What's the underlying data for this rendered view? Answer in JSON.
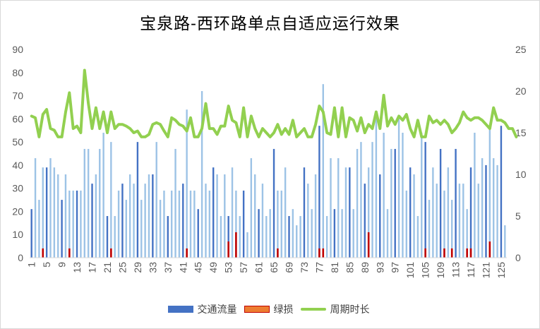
{
  "title": "宝泉路-西环路单点自适应运行效果",
  "legend": [
    {
      "label": "交通流量",
      "color": "#4472c4",
      "kind": "bar"
    },
    {
      "label": "绿损",
      "color": "#ed7d31",
      "kind": "bar"
    },
    {
      "label": "周期时长",
      "color": "#92d050",
      "kind": "line"
    }
  ],
  "colors": {
    "flow_light": "#9dc3e6",
    "flow_dark": "#4472c4",
    "loss": "#c00000",
    "cycle": "#92d050",
    "axis": "#d9d9d9",
    "tick_text": "#595959"
  },
  "chart_data": {
    "type": "bar",
    "title": "宝泉路-西环路单点自适应运行效果",
    "xlabel": "",
    "ylabel": "",
    "y2label": "",
    "ylim": [
      0,
      90
    ],
    "y2lim": [
      0,
      25
    ],
    "yticks": [
      0,
      10,
      20,
      30,
      40,
      50,
      60,
      70,
      80,
      90
    ],
    "y2ticks": [
      0,
      5,
      10,
      15,
      20,
      25
    ],
    "xtick_labels": [
      "1",
      "5",
      "9",
      "13",
      "17",
      "21",
      "25",
      "29",
      "33",
      "37",
      "41",
      "45",
      "49",
      "53",
      "57",
      "61",
      "65",
      "69",
      "73",
      "77",
      "81",
      "85",
      "89",
      "93",
      "97",
      "101",
      "105",
      "109",
      "113",
      "117",
      "121",
      "125"
    ],
    "grid": false,
    "legend_position": "bottom",
    "categories_count": 126,
    "series": [
      {
        "name": "交通流量",
        "type": "bar",
        "axis": "left",
        "values": [
          21,
          43,
          25,
          39,
          39,
          43,
          39,
          36,
          25,
          36,
          29,
          29,
          29,
          29,
          47,
          47,
          32,
          36,
          47,
          54,
          18,
          50,
          18,
          29,
          32,
          25,
          36,
          32,
          50,
          25,
          32,
          36,
          36,
          50,
          25,
          29,
          18,
          29,
          47,
          29,
          32,
          64,
          29,
          29,
          21,
          72,
          32,
          29,
          39,
          36,
          18,
          36,
          18,
          39,
          29,
          18,
          29,
          11,
          43,
          36,
          21,
          32,
          18,
          21,
          47,
          29,
          29,
          39,
          18,
          21,
          14,
          18,
          39,
          32,
          21,
          36,
          57,
          75,
          18,
          43,
          21,
          43,
          21,
          39,
          39,
          21,
          47,
          50,
          32,
          39,
          50,
          61,
          36,
          54,
          21,
          47,
          47,
          61,
          54,
          29,
          39,
          36,
          18,
          54,
          50,
          25,
          39,
          32,
          47,
          29,
          39,
          25,
          47,
          32,
          32,
          21,
          39,
          54,
          32,
          43,
          40,
          57,
          43,
          40,
          57,
          14
        ],
        "dark_indices": [
          0,
          4,
          8,
          12,
          16,
          20,
          24,
          28,
          32,
          36,
          40,
          44,
          48,
          52,
          56,
          60,
          64,
          68,
          72,
          76,
          80,
          84,
          88,
          92,
          96,
          100,
          104,
          108,
          112,
          116,
          120,
          124
        ]
      },
      {
        "name": "绿损",
        "type": "bar",
        "axis": "left",
        "values": [
          0,
          0,
          0,
          4,
          0,
          0,
          0,
          0,
          0,
          0,
          4,
          0,
          0,
          0,
          0,
          0,
          0,
          0,
          0,
          0,
          0,
          4,
          0,
          0,
          0,
          0,
          0,
          0,
          0,
          0,
          0,
          0,
          0,
          0,
          0,
          0,
          0,
          0,
          0,
          0,
          0,
          4,
          0,
          0,
          0,
          0,
          0,
          0,
          0,
          0,
          0,
          0,
          7,
          0,
          11,
          0,
          0,
          0,
          0,
          0,
          0,
          0,
          0,
          0,
          0,
          4,
          0,
          0,
          0,
          0,
          0,
          0,
          0,
          0,
          0,
          0,
          4,
          4,
          0,
          0,
          0,
          0,
          0,
          0,
          0,
          0,
          0,
          0,
          0,
          11,
          0,
          0,
          0,
          0,
          0,
          0,
          0,
          0,
          0,
          0,
          0,
          0,
          0,
          0,
          4,
          0,
          0,
          0,
          0,
          4,
          0,
          4,
          0,
          0,
          0,
          4,
          4,
          0,
          0,
          0,
          0,
          7,
          0,
          0,
          0,
          0
        ]
      },
      {
        "name": "周期时长",
        "type": "line",
        "axis": "right",
        "values": [
          17,
          16.8,
          14.5,
          17.2,
          17.8,
          15.5,
          15.3,
          14.5,
          14.5,
          17.5,
          19.8,
          15.5,
          15.8,
          15,
          22.5,
          18.5,
          15.5,
          18,
          15.5,
          17.5,
          15,
          17.5,
          15.5,
          16,
          16,
          15.8,
          15.5,
          15,
          15.2,
          14.5,
          14.5,
          14.8,
          16,
          16.2,
          16,
          15.2,
          14.5,
          16.8,
          16.5,
          16,
          15.8,
          15.2,
          16.8,
          14.5,
          14.5,
          15.5,
          18.5,
          15.5,
          15.5,
          14.8,
          15.8,
          15.8,
          18.2,
          16.5,
          16.2,
          14.5,
          18,
          14.5,
          17,
          15.5,
          14.5,
          15.5,
          15,
          14.5,
          15,
          16,
          14.8,
          15.5,
          14.8,
          16.5,
          14.5,
          15,
          15.5,
          14.5,
          14.5,
          16,
          18.2,
          17.5,
          15,
          14.8,
          18,
          14.5,
          18,
          14.5,
          16.8,
          16.5,
          15.2,
          16.8,
          15,
          16,
          15.5,
          17.5,
          15.5,
          19.5,
          15.8,
          16.8,
          16,
          17,
          16.5,
          17.2,
          15.5,
          14.5,
          16.5,
          14.5,
          14.5,
          17,
          16.2,
          16.5,
          16,
          16.5,
          16,
          15,
          15.5,
          16.2,
          17.5,
          16.8,
          16.5,
          16.8,
          16.8,
          16.5,
          16,
          15.5,
          18,
          16.5,
          16.5,
          16.2,
          15.5,
          15.5,
          14.5
        ]
      }
    ]
  }
}
